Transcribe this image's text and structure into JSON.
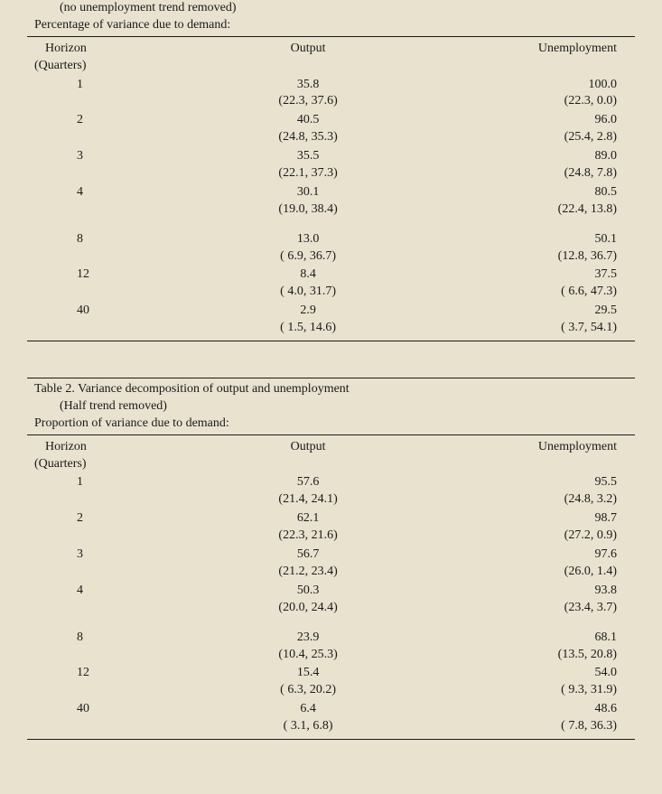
{
  "text_color": "#1a1a1a",
  "background_color": "#e8e2cf",
  "font_family": "Times New Roman",
  "font_size_pt": 11,
  "tables": [
    {
      "subtitle": "(no unemployment trend removed)",
      "subtitle2": "Percentage of variance due to demand:",
      "columns": {
        "horizon": "Horizon",
        "horizon_sub": "(Quarters)",
        "output": "Output",
        "unemp": "Unemployment"
      },
      "rows": [
        {
          "h": "1",
          "out_v": "35.8",
          "out_ci": "(22.3, 37.6)",
          "un_v": "100.0",
          "un_ci": "(22.3, 0.0)"
        },
        {
          "h": "2",
          "out_v": "40.5",
          "out_ci": "(24.8, 35.3)",
          "un_v": "96.0",
          "un_ci": "(25.4, 2.8)"
        },
        {
          "h": "3",
          "out_v": "35.5",
          "out_ci": "(22.1, 37.3)",
          "un_v": "89.0",
          "un_ci": "(24.8, 7.8)"
        },
        {
          "h": "4",
          "out_v": "30.1",
          "out_ci": "(19.0, 38.4)",
          "un_v": "80.5",
          "un_ci": "(22.4, 13.8)"
        },
        {
          "gap": true
        },
        {
          "h": "8",
          "out_v": "13.0",
          "out_ci": "( 6.9, 36.7)",
          "un_v": "50.1",
          "un_ci": "(12.8, 36.7)"
        },
        {
          "h": "12",
          "out_v": "8.4",
          "out_ci": "( 4.0, 31.7)",
          "un_v": "37.5",
          "un_ci": "( 6.6, 47.3)"
        },
        {
          "h": "40",
          "out_v": "2.9",
          "out_ci": "( 1.5, 14.6)",
          "un_v": "29.5",
          "un_ci": "( 3.7, 54.1)"
        }
      ]
    },
    {
      "title": "Table 2. Variance decomposition of output and unemployment",
      "subtitle": "(Half trend removed)",
      "subtitle2": "Proportion of variance due to demand:",
      "columns": {
        "horizon": "Horizon",
        "horizon_sub": "(Quarters)",
        "output": "Output",
        "unemp": "Unemployment"
      },
      "rows": [
        {
          "h": "1",
          "out_v": "57.6",
          "out_ci": "(21.4, 24.1)",
          "un_v": "95.5",
          "un_ci": "(24.8, 3.2)"
        },
        {
          "h": "2",
          "out_v": "62.1",
          "out_ci": "(22.3, 21.6)",
          "un_v": "98.7",
          "un_ci": "(27.2, 0.9)"
        },
        {
          "h": "3",
          "out_v": "56.7",
          "out_ci": "(21.2, 23.4)",
          "un_v": "97.6",
          "un_ci": "(26.0, 1.4)"
        },
        {
          "h": "4",
          "out_v": "50.3",
          "out_ci": "(20.0, 24.4)",
          "un_v": "93.8",
          "un_ci": "(23.4, 3.7)"
        },
        {
          "gap": true
        },
        {
          "h": "8",
          "out_v": "23.9",
          "out_ci": "(10.4, 25.3)",
          "un_v": "68.1",
          "un_ci": "(13.5, 20.8)"
        },
        {
          "h": "12",
          "out_v": "15.4",
          "out_ci": "( 6.3, 20.2)",
          "un_v": "54.0",
          "un_ci": "( 9.3, 31.9)"
        },
        {
          "h": "40",
          "out_v": "6.4",
          "out_ci": "( 3.1, 6.8)",
          "un_v": "48.6",
          "un_ci": "( 7.8, 36.3)"
        }
      ]
    }
  ]
}
